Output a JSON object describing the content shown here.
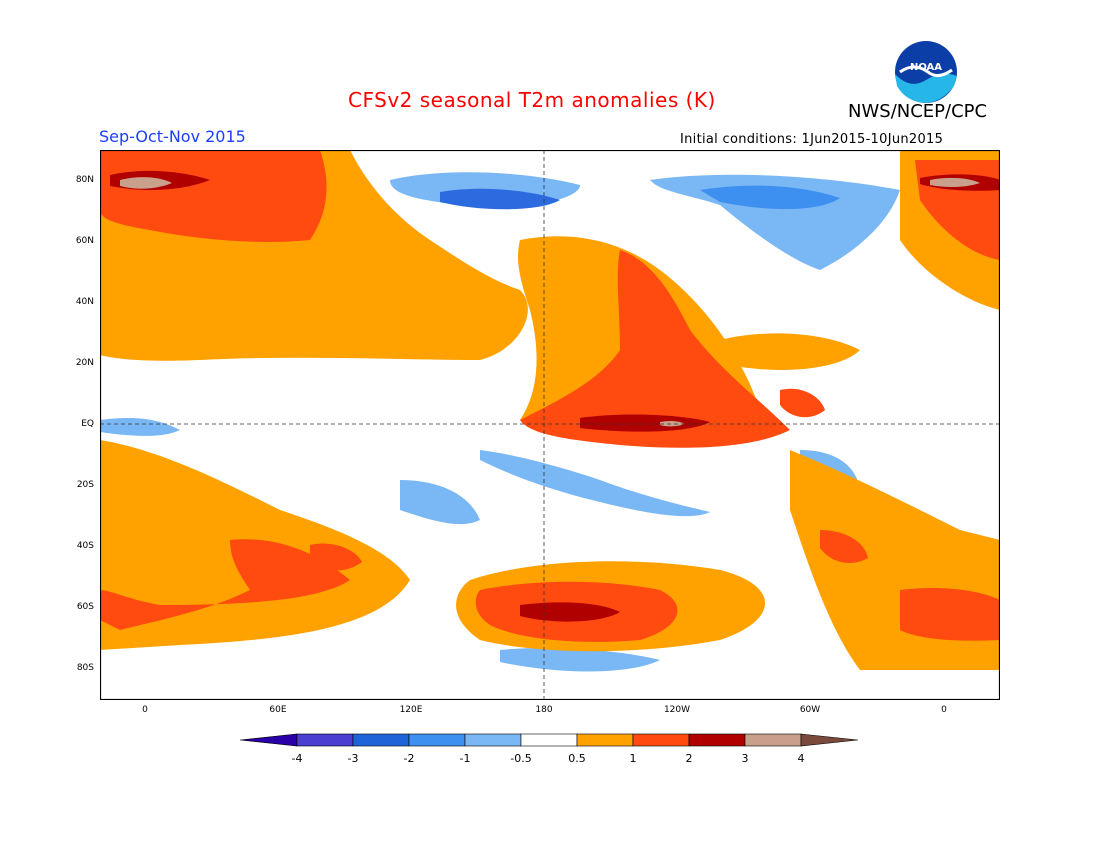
{
  "title": "CFSv2 seasonal T2m anomalies (K)",
  "agency": "NWS/NCEP/CPC",
  "logo_text": "NOAA",
  "season": "Sep-Oct-Nov 2015",
  "initial_conditions": "Initial conditions: 1Jun2015-10Jun2015",
  "latitude_labels": [
    "80N",
    "60N",
    "40N",
    "20N",
    "EQ",
    "20S",
    "40S",
    "60S",
    "80S"
  ],
  "longitude_labels": [
    "0",
    "60E",
    "120E",
    "180",
    "120W",
    "60W",
    "0"
  ],
  "colorbar": {
    "tick_labels": [
      "-4",
      "-3",
      "-2",
      "-1",
      "-0.5",
      "0.5",
      "1",
      "2",
      "3",
      "4"
    ],
    "colors": [
      "#2a00a8",
      "#4a3fd0",
      "#1e64d8",
      "#3d8ff0",
      "#7ab8f5",
      "#ffffff",
      "#ffa200",
      "#ff4a10",
      "#b00000",
      "#c9a08c",
      "#7a4a3c"
    ]
  }
}
